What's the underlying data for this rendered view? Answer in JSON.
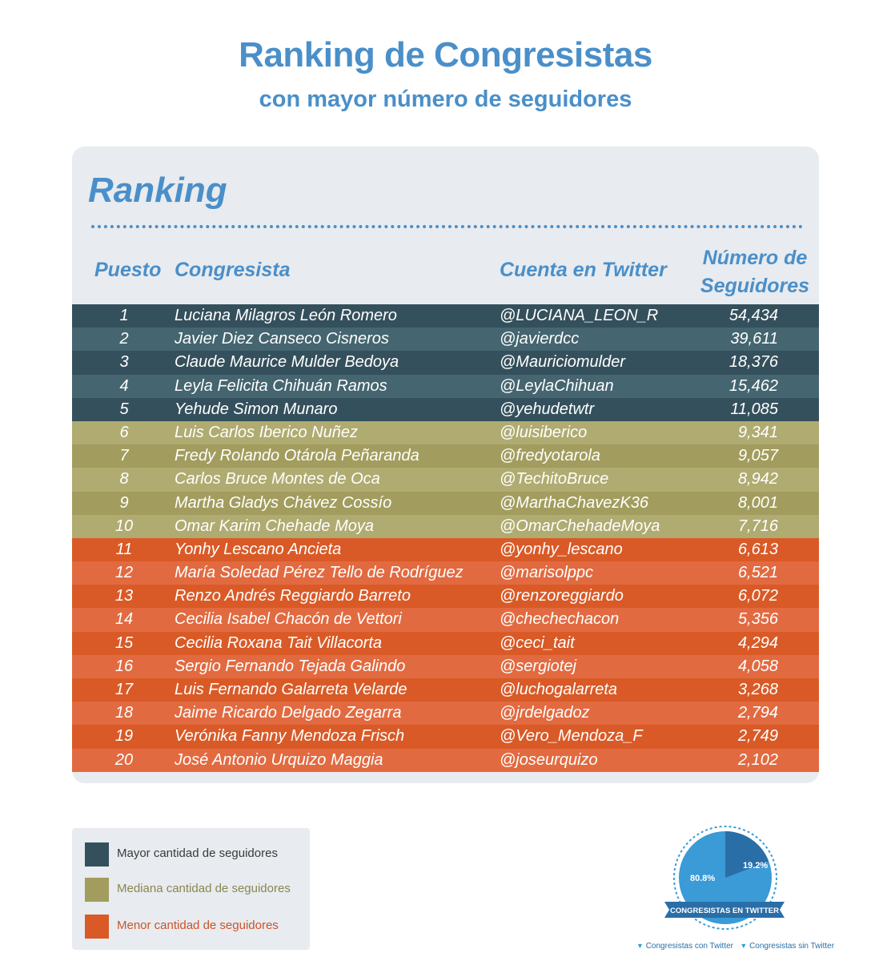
{
  "title": "Ranking de Congresistas",
  "subtitle": "con mayor número de seguidores",
  "ranking_heading": "Ranking",
  "columns": {
    "puesto": "Puesto",
    "congresista": "Congresista",
    "cuenta": "Cuenta en Twitter",
    "num_line1": "Número de",
    "num_line2": "Seguidores"
  },
  "colors": {
    "title": "#4a8fc9",
    "mayor_dark": "#34505c",
    "mayor_light": "#456570",
    "mediana_dark": "#a29d5e",
    "mediana_light": "#b0ab70",
    "menor_dark": "#d95a27",
    "menor_light": "#e26a40"
  },
  "legend": [
    {
      "label": "Mayor cantidad de seguidores",
      "color": "#34505c",
      "text_color": "#3a3a3a"
    },
    {
      "label": "Mediana cantidad de seguidores",
      "color": "#a29d5e",
      "text_color": "#8a8650"
    },
    {
      "label": "Menor cantidad de seguidores",
      "color": "#d95a27",
      "text_color": "#c9552a"
    }
  ],
  "donut": {
    "title": "CONGRESISTAS EN TWITTER",
    "con_pct": "80.8%",
    "sin_pct": "19.2%",
    "con_value": 80.8,
    "sin_value": 19.2,
    "legend_con": "Congresistas con Twitter",
    "legend_sin": "Congresistas sin Twitter"
  },
  "chart_data": {
    "type": "table",
    "title": "Ranking de Congresistas",
    "subtitle": "con mayor número de seguidores",
    "columns": [
      "Puesto",
      "Congresista",
      "Cuenta en Twitter",
      "Número de Seguidores"
    ],
    "rows": [
      {
        "rank": "1",
        "name": "Luciana Milagros León Romero",
        "account": "@LUCIANA_LEON_R",
        "followers": "54,434",
        "group": "mayor"
      },
      {
        "rank": "2",
        "name": "Javier Diez Canseco Cisneros",
        "account": "@javierdcc",
        "followers": "39,611",
        "group": "mayor"
      },
      {
        "rank": "3",
        "name": "Claude Maurice Mulder Bedoya",
        "account": "@Mauriciomulder",
        "followers": "18,376",
        "group": "mayor"
      },
      {
        "rank": "4",
        "name": "Leyla Felicita Chihuán Ramos",
        "account": "@LeylaChihuan",
        "followers": "15,462",
        "group": "mayor"
      },
      {
        "rank": "5",
        "name": "Yehude Simon Munaro",
        "account": "@yehudetwtr",
        "followers": "11,085",
        "group": "mayor"
      },
      {
        "rank": "6",
        "name": "Luis Carlos Iberico Nuñez",
        "account": "@luisiberico",
        "followers": "9,341",
        "group": "mediana"
      },
      {
        "rank": "7",
        "name": "Fredy Rolando Otárola Peñaranda",
        "account": "@fredyotarola",
        "followers": "9,057",
        "group": "mediana"
      },
      {
        "rank": "8",
        "name": "Carlos Bruce Montes de Oca",
        "account": "@TechitoBruce",
        "followers": "8,942",
        "group": "mediana"
      },
      {
        "rank": "9",
        "name": "Martha Gladys Chávez Cossío",
        "account": "@MarthaChavezK36",
        "followers": "8,001",
        "group": "mediana"
      },
      {
        "rank": "10",
        "name": "Omar Karim Chehade Moya",
        "account": "@OmarChehadeMoya",
        "followers": "7,716",
        "group": "mediana"
      },
      {
        "rank": "11",
        "name": "Yonhy Lescano Ancieta",
        "account": "@yonhy_lescano",
        "followers": "6,613",
        "group": "menor"
      },
      {
        "rank": "12",
        "name": "María Soledad Pérez Tello de Rodríguez",
        "account": "@marisolppc",
        "followers": "6,521",
        "group": "menor"
      },
      {
        "rank": "13",
        "name": "Renzo Andrés Reggiardo Barreto",
        "account": "@renzoreggiardo",
        "followers": "6,072",
        "group": "menor"
      },
      {
        "rank": "14",
        "name": "Cecilia Isabel Chacón de Vettori",
        "account": "@chechechacon",
        "followers": "5,356",
        "group": "menor"
      },
      {
        "rank": "15",
        "name": "Cecilia Roxana Tait Villacorta",
        "account": "@ceci_tait",
        "followers": "4,294",
        "group": "menor"
      },
      {
        "rank": "16",
        "name": "Sergio Fernando Tejada Galindo",
        "account": "@sergiotej",
        "followers": "4,058",
        "group": "menor"
      },
      {
        "rank": "17",
        "name": "Luis Fernando Galarreta Velarde",
        "account": "@luchogalarreta",
        "followers": "3,268",
        "group": "menor"
      },
      {
        "rank": "18",
        "name": "Jaime Ricardo Delgado Zegarra",
        "account": "@jrdelgadoz",
        "followers": "2,794",
        "group": "menor"
      },
      {
        "rank": "19",
        "name": "Verónika Fanny Mendoza Frisch",
        "account": "@Vero_Mendoza_F",
        "followers": "2,749",
        "group": "menor"
      },
      {
        "rank": "20",
        "name": "José Antonio Urquizo Maggia",
        "account": "@joseurquizo",
        "followers": "2,102",
        "group": "menor"
      }
    ]
  }
}
